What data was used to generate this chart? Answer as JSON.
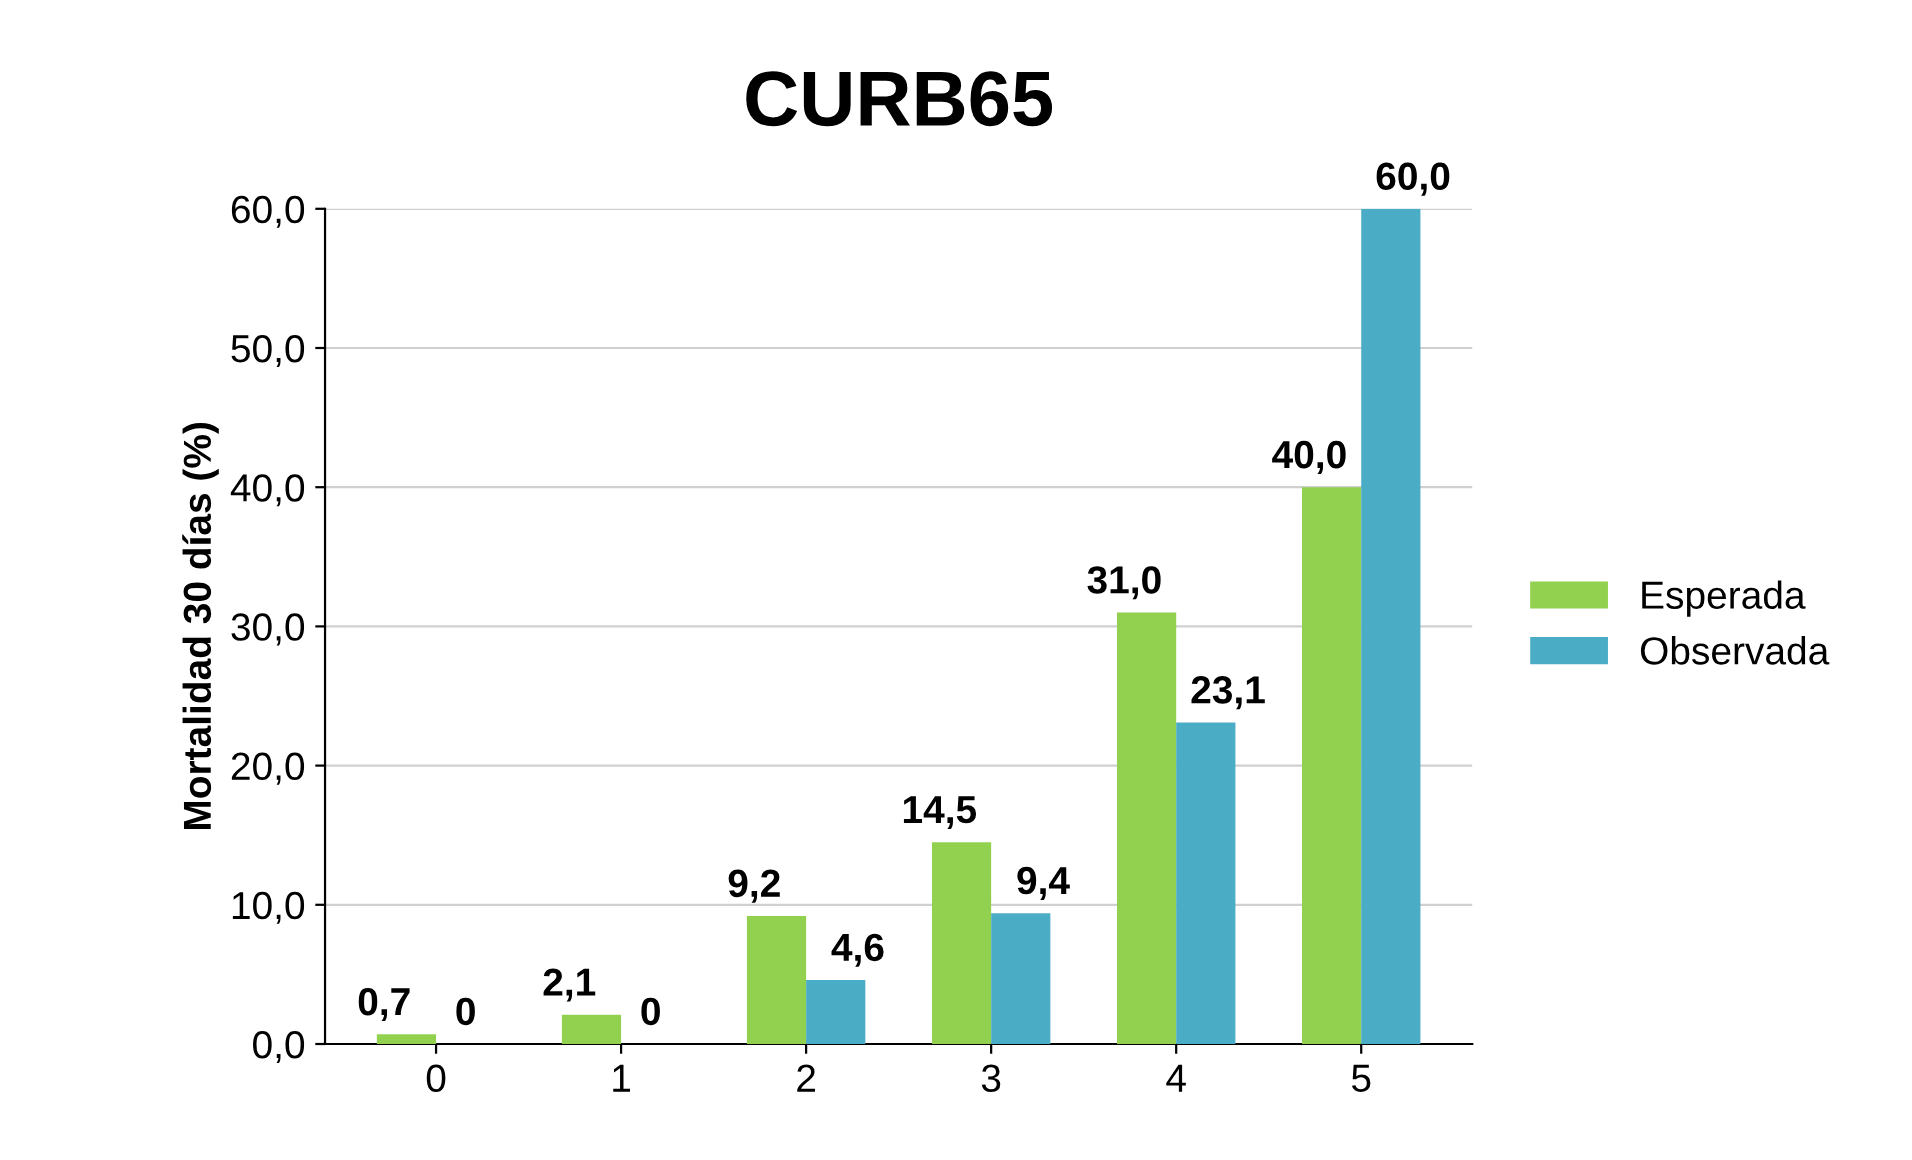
{
  "chart_data": {
    "type": "bar",
    "title": "CURB65",
    "ylabel": "Mortalidad 30 días (%)",
    "categories": [
      "0",
      "1",
      "2",
      "3",
      "4",
      "5"
    ],
    "series": [
      {
        "name": "Esperada",
        "color": "#92d050",
        "values": [
          0.7,
          2.1,
          9.2,
          14.5,
          31.0,
          40.0
        ],
        "value_labels": [
          "0,7",
          "2,1",
          "9,2",
          "14,5",
          "31,0",
          "40,0"
        ]
      },
      {
        "name": "Observada",
        "color": "#4bacc6",
        "values": [
          0,
          0,
          4.6,
          9.4,
          23.1,
          60.0
        ],
        "value_labels": [
          "0",
          "0",
          "4,6",
          "9,4",
          "23,1",
          "60,0"
        ]
      }
    ],
    "ylim": [
      0,
      60
    ],
    "yticks": [
      {
        "value": 0,
        "label": "0,0"
      },
      {
        "value": 10,
        "label": "10,0"
      },
      {
        "value": 20,
        "label": "20,0"
      },
      {
        "value": 30,
        "label": "30,0"
      },
      {
        "value": 40,
        "label": "40,0"
      },
      {
        "value": 50,
        "label": "50,0"
      },
      {
        "value": 60,
        "label": "60,0"
      }
    ],
    "grid": "y",
    "legend": "right"
  }
}
